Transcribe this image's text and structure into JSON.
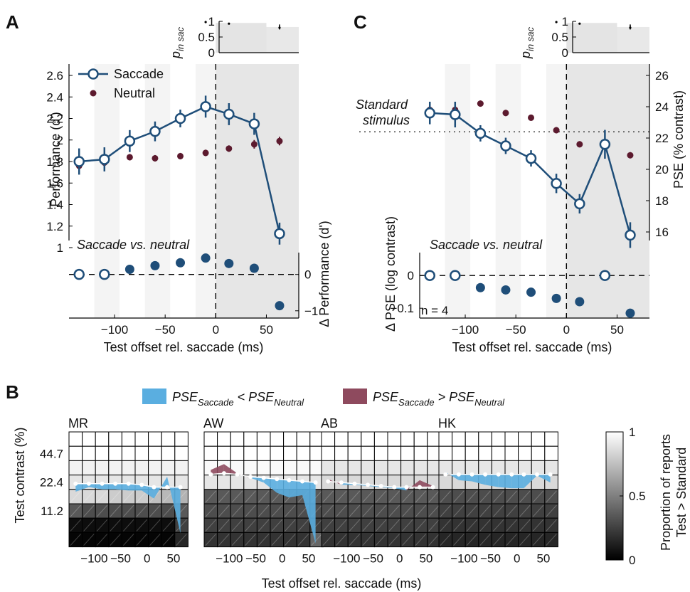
{
  "panels": {
    "A": "A",
    "B": "B",
    "C": "C"
  },
  "colors": {
    "saccade": "#1f4e79",
    "neutral": "#5c1a2e",
    "pse_less": "#5aaee0",
    "pse_greater": "#8e4a5e"
  },
  "text": {
    "p_in_sac_base": "p",
    "p_in_sac_sub": "in sac",
    "standard_stimulus_1": "Standard",
    "standard_stimulus_2": "stimulus",
    "saccade_vs_neutral": "Saccade vs. neutral",
    "n_label": "n = 4",
    "legend_b_less_1": "PSE",
    "legend_b_less_sub1": "Saccade",
    "legend_b_less_mid": " < PSE",
    "legend_b_less_sub2": "Neutral",
    "legend_b_greater_1": "PSE",
    "legend_b_greater_sub1": "Saccade",
    "legend_b_greater_mid": " > PSE",
    "legend_b_greater_sub2": "Neutral",
    "colorbar_label_1": "Proportion of reports",
    "colorbar_label_2": "Test > Standard"
  },
  "chart_data": [
    {
      "panel": "A",
      "type": "scatter",
      "xlabel": "Test offset rel. saccade (ms)",
      "ylabel": "Performance (d')",
      "ylabel_delta": "Δ Performance (d')",
      "xlim": [
        -145,
        82
      ],
      "ylim": [
        1.0,
        2.6
      ],
      "xticks": [
        -100,
        -50,
        0,
        50
      ],
      "yticks": [
        1,
        1.2,
        1.4,
        1.6,
        1.8,
        2,
        2.2,
        2.4,
        2.6
      ],
      "delta_ylim": [
        -1.2,
        0.6
      ],
      "delta_yticks": [
        0,
        -1
      ],
      "series": [
        {
          "name": "Saccade",
          "x": [
            -135,
            -110,
            -85,
            -60,
            -35,
            -10,
            13,
            38,
            63
          ],
          "values": [
            1.8,
            1.82,
            1.99,
            2.08,
            2.2,
            2.31,
            2.24,
            2.15,
            1.13
          ],
          "err": [
            0.09,
            0.08,
            0.07,
            0.06,
            0.05,
            0.07,
            0.07,
            0.07,
            0.07
          ]
        },
        {
          "name": "Neutral",
          "x": [
            -135,
            -110,
            -85,
            -60,
            -35,
            -10,
            13,
            38,
            63
          ],
          "values": [
            1.76,
            1.79,
            1.84,
            1.83,
            1.85,
            1.88,
            1.92,
            1.96,
            1.99
          ],
          "err": [
            0.04,
            0.03,
            0.03,
            0.03,
            0.03,
            0.03,
            0.03,
            0.04,
            0.04
          ]
        }
      ],
      "delta": {
        "x": [
          -135,
          -110,
          -85,
          -60,
          -35,
          -10,
          13,
          38,
          63
        ],
        "values": [
          0.0,
          0.0,
          0.14,
          0.24,
          0.32,
          0.45,
          0.3,
          0.17,
          -0.86
        ],
        "sig": [
          false,
          false,
          true,
          true,
          true,
          true,
          true,
          true,
          true
        ],
        "err": [
          0.12,
          0.1,
          0.08,
          0.08,
          0.08,
          0.09,
          0.1,
          0.1,
          0.1
        ]
      },
      "p_in_sac": {
        "ylim": [
          0,
          1
        ],
        "yticks": [
          0,
          0.5,
          1
        ],
        "values": [
          1,
          1,
          1,
          1,
          1,
          1,
          0.95,
          0.95,
          0.82
        ]
      },
      "bands": [
        [
          -120,
          -95
        ],
        [
          -70,
          -45
        ],
        [
          -20,
          0
        ]
      ]
    },
    {
      "panel": "C",
      "type": "scatter",
      "xlabel": "Test offset rel. saccade (ms)",
      "ylabel": "PSE (% contrast)",
      "ylabel_delta": "Δ PSE (log contrast)",
      "xlim": [
        -145,
        82
      ],
      "ylim": [
        15,
        26
      ],
      "yticks": [
        16,
        18,
        20,
        22,
        24,
        26
      ],
      "xticks": [
        -100,
        -50,
        0,
        50
      ],
      "standard": 22.4,
      "delta_ylim": [
        -0.13,
        0.07
      ],
      "delta_yticks": [
        0,
        -0.1
      ],
      "series": [
        {
          "name": "Saccade",
          "x": [
            -135,
            -110,
            -85,
            -60,
            -35,
            -10,
            13,
            38,
            63
          ],
          "values": [
            23.6,
            23.5,
            22.3,
            21.5,
            20.7,
            19.1,
            17.8,
            21.6,
            15.8
          ],
          "err": [
            0.5,
            0.6,
            0.3,
            0.3,
            0.3,
            0.4,
            0.4,
            0.7,
            0.6
          ]
        },
        {
          "name": "Neutral",
          "x": [
            -135,
            -110,
            -85,
            -60,
            -35,
            -10,
            13,
            38,
            63
          ],
          "values": [
            23.8,
            23.8,
            24.2,
            23.6,
            23.3,
            22.5,
            21.6,
            21.6,
            20.9
          ],
          "err": [
            0.2,
            0.2,
            0.2,
            0.2,
            0.2,
            0.2,
            0.2,
            0.2,
            0.2
          ]
        }
      ],
      "delta": {
        "x": [
          -135,
          -110,
          -85,
          -60,
          -35,
          -10,
          13,
          38,
          63
        ],
        "values": [
          0.0,
          0.0,
          -0.037,
          -0.044,
          -0.051,
          -0.07,
          -0.08,
          0.0,
          -0.115
        ],
        "sig": [
          false,
          false,
          true,
          true,
          true,
          true,
          true,
          false,
          true
        ],
        "err": [
          0.012,
          0.013,
          0.006,
          0.006,
          0.006,
          0.007,
          0.009,
          0.008,
          0.01
        ]
      },
      "p_in_sac": {
        "ylim": [
          0,
          1
        ],
        "yticks": [
          0,
          0.5,
          1
        ],
        "values": [
          1,
          1,
          1,
          1,
          1,
          1,
          0.95,
          0.95,
          0.82
        ]
      },
      "bands": [
        [
          -120,
          -95
        ],
        [
          -70,
          -45
        ],
        [
          -20,
          0
        ]
      ]
    },
    {
      "panel": "B",
      "type": "heatmap",
      "xlabel": "Test offset rel. saccade (ms)",
      "ylabel": "Test contrast (%)",
      "xticks": [
        -100,
        -50,
        0,
        50
      ],
      "x": [
        -135,
        -110,
        -85,
        -60,
        -35,
        -10,
        13,
        38,
        63
      ],
      "ytick_labels": [
        "44.7",
        "22.4",
        "11.2"
      ],
      "colorbar": {
        "ticks": [
          0,
          0.5,
          1
        ]
      },
      "subjects": [
        {
          "name": "MR",
          "gray": [
            [
              1,
              1,
              1,
              1,
              1,
              1,
              1,
              1,
              1
            ],
            [
              1,
              1,
              1,
              1,
              1,
              1,
              1,
              1,
              1
            ],
            [
              0.95,
              0.95,
              0.95,
              0.95,
              0.95,
              0.95,
              0.95,
              0.95,
              0.95
            ],
            [
              0.9,
              0.9,
              0.9,
              0.9,
              0.9,
              0.9,
              0.9,
              0.9,
              0.9
            ],
            [
              0.85,
              0.85,
              0.85,
              0.8,
              0.8,
              0.8,
              0.75,
              0.72,
              0.7
            ],
            [
              0.35,
              0.3,
              0.3,
              0.3,
              0.3,
              0.3,
              0.3,
              0.3,
              0.35
            ],
            [
              0.05,
              0.05,
              0.05,
              0.05,
              0.05,
              0.05,
              0.05,
              0.05,
              0.25
            ],
            [
              0.02,
              0.02,
              0.02,
              0.02,
              0.02,
              0.02,
              0.02,
              0.02,
              0.15
            ]
          ],
          "pse_sac": [
            0.52,
            0.48,
            0.5,
            0.5,
            0.51,
            0.51,
            0.58,
            0.39,
            0.88
          ],
          "pse_neu": [
            0.45,
            0.45,
            0.45,
            0.45,
            0.45,
            0.46,
            0.48,
            0.48,
            0.48
          ]
        },
        {
          "name": "AW",
          "gray": [
            [
              1,
              1,
              1,
              1,
              1,
              1,
              1,
              1,
              1
            ],
            [
              1,
              1,
              1,
              1,
              1,
              1,
              1,
              1,
              1
            ],
            [
              0.98,
              0.98,
              0.98,
              0.98,
              0.98,
              0.98,
              0.98,
              0.98,
              0.98
            ],
            [
              0.9,
              0.9,
              0.9,
              0.9,
              0.9,
              0.9,
              0.9,
              0.9,
              0.9
            ],
            [
              0.35,
              0.35,
              0.35,
              0.35,
              0.35,
              0.35,
              0.35,
              0.35,
              0.35
            ],
            [
              0.3,
              0.3,
              0.3,
              0.3,
              0.3,
              0.3,
              0.3,
              0.3,
              0.3
            ],
            [
              0.25,
              0.25,
              0.25,
              0.25,
              0.25,
              0.25,
              0.25,
              0.25,
              0.25
            ],
            [
              0.2,
              0.2,
              0.2,
              0.2,
              0.2,
              0.2,
              0.2,
              0.2,
              0.4
            ]
          ],
          "pse_sac": [
            0.33,
            0.28,
            0.36,
            0.4,
            0.44,
            0.53,
            0.57,
            0.55,
            0.97
          ],
          "pse_neu": [
            0.37,
            0.36,
            0.37,
            0.39,
            0.4,
            0.41,
            0.42,
            0.43,
            0.44
          ]
        },
        {
          "name": "AB",
          "gray": [
            [
              1,
              1,
              1,
              1,
              1,
              1,
              1,
              1,
              1
            ],
            [
              1,
              1,
              1,
              1,
              1,
              1,
              1,
              1,
              1
            ],
            [
              0.9,
              0.9,
              0.9,
              0.9,
              0.9,
              0.9,
              0.9,
              0.9,
              0.9
            ],
            [
              0.85,
              0.85,
              0.85,
              0.85,
              0.85,
              0.85,
              0.85,
              0.85,
              0.85
            ],
            [
              0.35,
              0.35,
              0.35,
              0.35,
              0.35,
              0.35,
              0.35,
              0.35,
              0.35
            ],
            [
              0.3,
              0.3,
              0.3,
              0.3,
              0.3,
              0.3,
              0.3,
              0.3,
              0.3
            ],
            [
              0.25,
              0.25,
              0.25,
              0.25,
              0.25,
              0.25,
              0.25,
              0.25,
              0.25
            ],
            [
              0.2,
              0.2,
              0.2,
              0.2,
              0.2,
              0.2,
              0.2,
              0.2,
              0.2
            ]
          ],
          "pse_sac": [
            0.41,
            0.46,
            0.46,
            0.47,
            0.48,
            0.49,
            0.51,
            0.42,
            0.47
          ],
          "pse_neu": [
            0.43,
            0.44,
            0.45,
            0.46,
            0.47,
            0.48,
            0.48,
            0.48,
            0.48
          ]
        },
        {
          "name": "HK",
          "gray": [
            [
              1,
              1,
              1,
              1,
              1,
              1,
              1,
              1,
              1
            ],
            [
              1,
              1,
              1,
              1,
              1,
              1,
              1,
              1,
              1
            ],
            [
              0.9,
              0.9,
              0.9,
              0.9,
              0.9,
              0.9,
              0.9,
              0.9,
              0.9
            ],
            [
              0.85,
              0.85,
              0.85,
              0.85,
              0.85,
              0.85,
              0.85,
              0.85,
              0.85
            ],
            [
              0.3,
              0.3,
              0.3,
              0.3,
              0.3,
              0.3,
              0.3,
              0.3,
              0.3
            ],
            [
              0.25,
              0.25,
              0.25,
              0.25,
              0.25,
              0.25,
              0.25,
              0.25,
              0.25
            ],
            [
              0.2,
              0.2,
              0.2,
              0.2,
              0.2,
              0.2,
              0.2,
              0.2,
              0.2
            ],
            [
              0.15,
              0.15,
              0.15,
              0.15,
              0.15,
              0.15,
              0.15,
              0.15,
              0.15
            ]
          ],
          "pse_sac": [
            0.35,
            0.42,
            0.43,
            0.46,
            0.48,
            0.49,
            0.49,
            0.38,
            0.44
          ],
          "pse_neu": [
            0.37,
            0.37,
            0.37,
            0.37,
            0.37,
            0.37,
            0.37,
            0.37,
            0.37
          ]
        }
      ]
    }
  ]
}
